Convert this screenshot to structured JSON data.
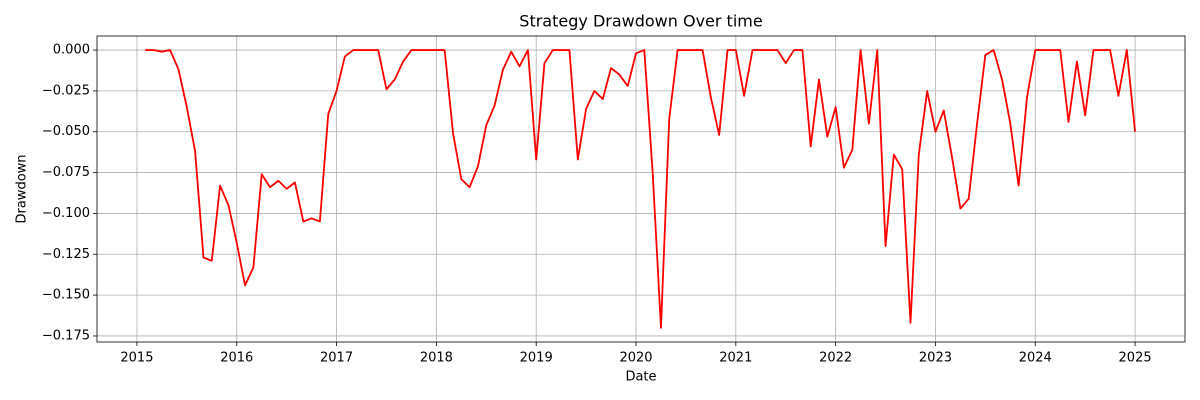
{
  "chart_data": {
    "type": "line",
    "title": "Strategy Drawdown Over time",
    "xlabel": "Date",
    "ylabel": "Drawdown",
    "x": [
      2015.083,
      2015.167,
      2015.25,
      2015.333,
      2015.417,
      2015.5,
      2015.583,
      2015.667,
      2015.75,
      2015.833,
      2015.917,
      2016.0,
      2016.083,
      2016.167,
      2016.25,
      2016.333,
      2016.417,
      2016.5,
      2016.583,
      2016.667,
      2016.75,
      2016.833,
      2016.917,
      2017.0,
      2017.083,
      2017.167,
      2017.25,
      2017.333,
      2017.417,
      2017.5,
      2017.583,
      2017.667,
      2017.75,
      2017.833,
      2017.917,
      2018.0,
      2018.083,
      2018.167,
      2018.25,
      2018.333,
      2018.417,
      2018.5,
      2018.583,
      2018.667,
      2018.75,
      2018.833,
      2018.917,
      2019.0,
      2019.083,
      2019.167,
      2019.25,
      2019.333,
      2019.417,
      2019.5,
      2019.583,
      2019.667,
      2019.75,
      2019.833,
      2019.917,
      2020.0,
      2020.083,
      2020.167,
      2020.25,
      2020.333,
      2020.417,
      2020.5,
      2020.583,
      2020.667,
      2020.75,
      2020.833,
      2020.917,
      2021.0,
      2021.083,
      2021.167,
      2021.25,
      2021.333,
      2021.417,
      2021.5,
      2021.583,
      2021.667,
      2021.75,
      2021.833,
      2021.917,
      2022.0,
      2022.083,
      2022.167,
      2022.25,
      2022.333,
      2022.417,
      2022.5,
      2022.583,
      2022.667,
      2022.75,
      2022.833,
      2022.917,
      2023.0,
      2023.083,
      2023.167,
      2023.25,
      2023.333,
      2023.417,
      2023.5,
      2023.583,
      2023.667,
      2023.75,
      2023.833,
      2023.917,
      2024.0,
      2024.083,
      2024.167,
      2024.25,
      2024.333,
      2024.417,
      2024.5,
      2024.583,
      2024.667,
      2024.75,
      2024.833,
      2024.917,
      2025.0
    ],
    "series": [
      {
        "color": "#ff0000",
        "values": [
          0,
          0,
          -0.001,
          0,
          -0.012,
          -0.035,
          -0.062,
          -0.127,
          -0.129,
          -0.083,
          -0.095,
          -0.118,
          -0.144,
          -0.133,
          -0.076,
          -0.084,
          -0.08,
          -0.085,
          -0.081,
          -0.105,
          -0.103,
          -0.105,
          -0.039,
          -0.025,
          -0.004,
          0,
          0,
          0,
          0,
          -0.024,
          -0.018,
          -0.007,
          0,
          0,
          0,
          0,
          0,
          -0.051,
          -0.079,
          -0.084,
          -0.071,
          -0.046,
          -0.034,
          -0.012,
          -0.001,
          -0.01,
          0,
          -0.067,
          -0.008,
          0,
          0,
          0,
          -0.067,
          -0.036,
          -0.025,
          -0.03,
          -0.011,
          -0.015,
          -0.022,
          -0.002,
          0,
          -0.075,
          -0.17,
          -0.042,
          0,
          0,
          0,
          0,
          -0.029,
          -0.052,
          0,
          0,
          -0.028,
          0,
          0,
          0,
          0,
          -0.008,
          0,
          0,
          -0.059,
          -0.018,
          -0.053,
          -0.035,
          -0.072,
          -0.061,
          0,
          -0.045,
          0,
          -0.12,
          -0.064,
          -0.073,
          -0.167,
          -0.064,
          -0.025,
          -0.05,
          -0.037,
          -0.066,
          -0.097,
          -0.091,
          -0.045,
          -0.003,
          0,
          -0.018,
          -0.045,
          -0.083,
          -0.029,
          0,
          0,
          0,
          0,
          -0.044,
          -0.007,
          -0.04,
          0,
          0,
          0,
          -0.028,
          0,
          -0.05
        ]
      }
    ],
    "xlim": [
      2014.6,
      2025.5
    ],
    "ylim": [
      -0.1787,
      0.0086
    ],
    "xticks": [
      2015,
      2016,
      2017,
      2018,
      2019,
      2020,
      2021,
      2022,
      2023,
      2024,
      2025
    ],
    "yticks": [
      {
        "value": 0,
        "label": "0.000"
      },
      {
        "value": -0.025,
        "label": "−0.025"
      },
      {
        "value": -0.05,
        "label": "−0.050"
      },
      {
        "value": -0.075,
        "label": "−0.075"
      },
      {
        "value": -0.1,
        "label": "−0.100"
      },
      {
        "value": -0.125,
        "label": "−0.125"
      },
      {
        "value": -0.15,
        "label": "−0.150"
      },
      {
        "value": -0.175,
        "label": "−0.175"
      }
    ],
    "grid": true
  }
}
